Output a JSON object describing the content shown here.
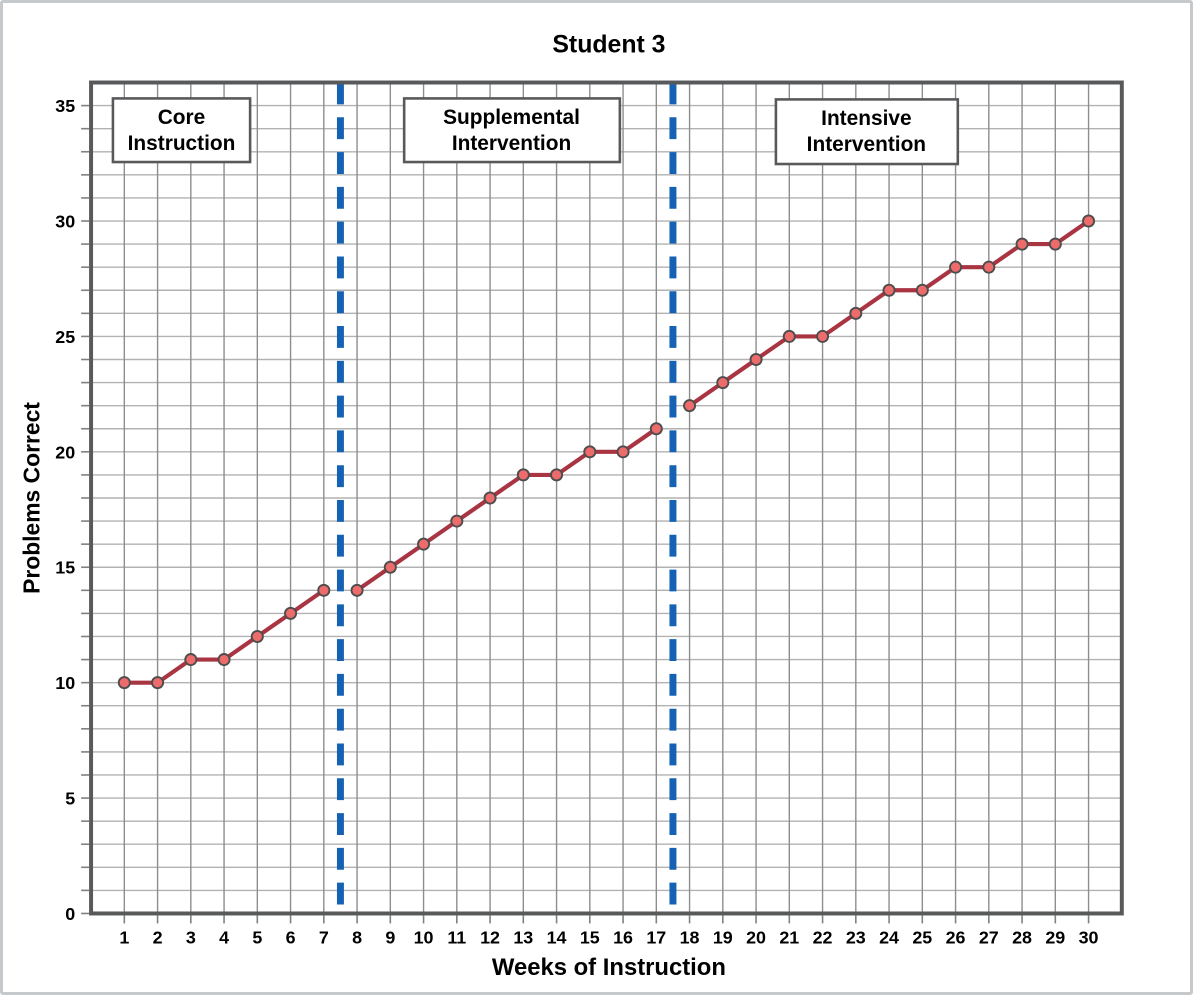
{
  "chart_data": {
    "type": "line",
    "title": "Student 3",
    "xlabel": "Weeks of Instruction",
    "ylabel": "Problems Correct",
    "x": [
      1,
      2,
      3,
      4,
      5,
      6,
      7,
      8,
      9,
      10,
      11,
      12,
      13,
      14,
      15,
      16,
      17,
      18,
      19,
      20,
      21,
      22,
      23,
      24,
      25,
      26,
      27,
      28,
      29,
      30
    ],
    "values": [
      10,
      10,
      11,
      11,
      12,
      13,
      14,
      14,
      15,
      16,
      17,
      18,
      19,
      19,
      20,
      20,
      21,
      22,
      23,
      24,
      25,
      25,
      26,
      27,
      27,
      28,
      28,
      29,
      29,
      30
    ],
    "segments": [
      [
        1,
        7
      ],
      [
        8,
        17
      ],
      [
        18,
        30
      ]
    ],
    "phase_boundaries": [
      7.5,
      17.5
    ],
    "phases": [
      {
        "label": "Core Instruction",
        "line1": "Core",
        "line2": "Instruction",
        "weeks": [
          1,
          7
        ]
      },
      {
        "label": "Supplemental Intervention",
        "line1": "Supplemental",
        "line2": "Intervention",
        "weeks": [
          8,
          17
        ]
      },
      {
        "label": "Intensive Intervention",
        "line1": "Intensive",
        "line2": "Intervention",
        "weeks": [
          18,
          30
        ]
      }
    ],
    "y_ticks": [
      0,
      5,
      10,
      15,
      20,
      25,
      30,
      35
    ],
    "xlim": [
      0,
      31
    ],
    "ylim": [
      0,
      36
    ],
    "grid": true,
    "legend": "none",
    "colors": {
      "line": "#a93442",
      "marker_fill": "#ee6b6b",
      "marker_stroke": "#4d4d4d",
      "boundary": "#1562b4",
      "grid_v": "#8d8d8d",
      "grid_h": "#b2b2b2",
      "border": "#58595b",
      "tick": "#808080",
      "text": "#000000"
    }
  }
}
